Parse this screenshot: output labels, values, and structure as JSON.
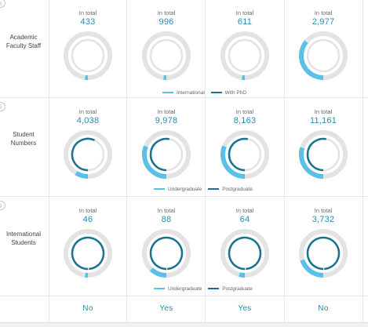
{
  "colors": {
    "accent": "#2a8aad",
    "light_blue": "#5bc0e8",
    "dark_blue": "#17738f",
    "track": "#e3e3e3"
  },
  "sections": [
    {
      "label": "Academic Faculty Staff",
      "info_icon": "info-icon",
      "legend": [
        "International",
        "With PhD"
      ],
      "cells": [
        {
          "caption": "In total",
          "total": "433",
          "international": 0.01,
          "phd": 0.0
        },
        {
          "caption": "In total",
          "total": "996",
          "international": 0.01,
          "phd": 0.0
        },
        {
          "caption": "In total",
          "total": "611",
          "international": 0.01,
          "phd": 0.0
        },
        {
          "caption": "In total",
          "total": "2,977",
          "international": 0.36,
          "phd": 0.0
        }
      ]
    },
    {
      "label": "Student Numbers",
      "info_icon": "info-icon",
      "legend": [
        "Undergraduate",
        "Postgraduate"
      ],
      "cells": [
        {
          "caption": "In total",
          "total": "4,038",
          "undergraduate": 0.09,
          "postgraduate": 0.57
        },
        {
          "caption": "In total",
          "total": "9,978",
          "undergraduate": 0.31,
          "postgraduate": 0.53
        },
        {
          "caption": "In total",
          "total": "8,163",
          "undergraduate": 0.31,
          "postgraduate": 0.53
        },
        {
          "caption": "In total",
          "total": "11,161",
          "undergraduate": 0.3,
          "postgraduate": 0.53
        }
      ]
    },
    {
      "label": "International Students",
      "info_icon": "info-icon",
      "legend": [
        "Undergraduate",
        "Postgraduate"
      ],
      "cells": [
        {
          "caption": "In total",
          "total": "46",
          "undergraduate": 0.02,
          "postgraduate": 0.99
        },
        {
          "caption": "In total",
          "total": "88",
          "undergraduate": 0.12,
          "postgraduate": 0.99
        },
        {
          "caption": "In total",
          "total": "64",
          "undergraduate": 0.04,
          "postgraduate": 0.99
        },
        {
          "caption": "In total",
          "total": "3,732",
          "undergraduate": 0.2,
          "postgraduate": 0.99
        }
      ]
    }
  ],
  "answers": [
    "No",
    "Yes",
    "Yes",
    "No"
  ]
}
